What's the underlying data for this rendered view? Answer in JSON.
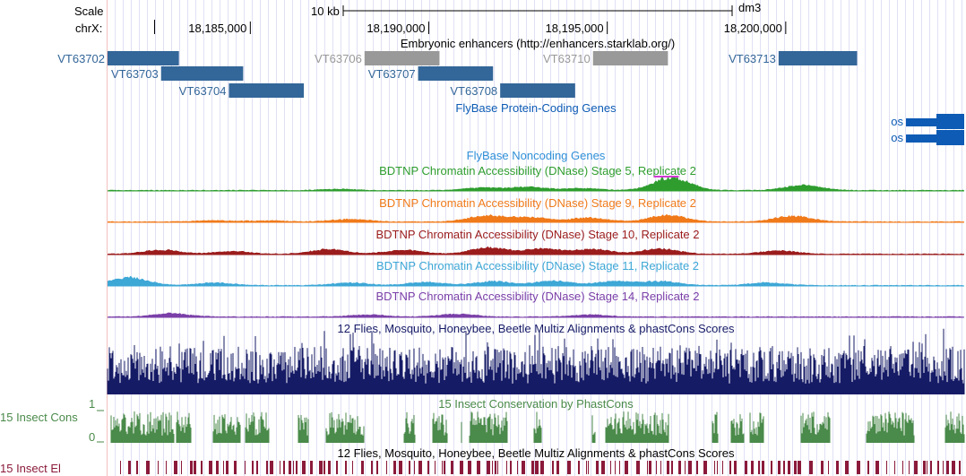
{
  "header": {
    "scale_label": "Scale",
    "scale_bar_label": "10 kb",
    "assembly": "dm3",
    "chrom_label": "chrX:",
    "ticks": [
      {
        "pos": 18185000,
        "label": "18,185,000"
      },
      {
        "pos": 18190000,
        "label": "18,190,000"
      },
      {
        "pos": 18195000,
        "label": "18,195,000"
      },
      {
        "pos": 18200000,
        "label": "18,200,000"
      }
    ]
  },
  "view": {
    "start": 18181000,
    "end": 18205000
  },
  "colors": {
    "enhancer_active": "#336699",
    "enhancer_inactive": "#999999",
    "gene": "#0d5bb5",
    "stage5": "#2e9d2e",
    "stage9": "#f07a1a",
    "stage10": "#9b1c1c",
    "stage11": "#3da7d6",
    "stage14": "#7a3fa8",
    "multiz": "#161b66",
    "phastcons": "#4a8a4a",
    "elements": "#8b1a3a",
    "grid": "#ccccee"
  },
  "tracks": {
    "enhancers": {
      "title": "Embryonic enhancers (http://enhancers.starklab.org/)",
      "items": [
        {
          "name": "VT63702",
          "start": 18181000,
          "end": 18183000,
          "active": true,
          "row": 0
        },
        {
          "name": "VT63703",
          "start": 18182500,
          "end": 18184800,
          "active": true,
          "row": 1
        },
        {
          "name": "VT63704",
          "start": 18184400,
          "end": 18186500,
          "active": true,
          "row": 2
        },
        {
          "name": "VT63706",
          "start": 18188200,
          "end": 18190300,
          "active": false,
          "row": 0
        },
        {
          "name": "VT63707",
          "start": 18189700,
          "end": 18191800,
          "active": true,
          "row": 1
        },
        {
          "name": "VT63708",
          "start": 18192000,
          "end": 18194100,
          "active": true,
          "row": 2
        },
        {
          "name": "VT63710",
          "start": 18194600,
          "end": 18196700,
          "active": false,
          "row": 0
        },
        {
          "name": "VT63713",
          "start": 18199800,
          "end": 18202000,
          "active": true,
          "row": 0
        }
      ]
    },
    "protein_coding": {
      "title": "FlyBase Protein-Coding Genes",
      "genes": [
        {
          "name": "os",
          "row": 0
        },
        {
          "name": "os",
          "row": 1
        }
      ]
    },
    "noncoding": {
      "title": "FlyBase Noncoding Genes"
    },
    "dnase": [
      {
        "title": "BDTNP Chromatin Accessibility (DNase) Stage 5, Replicate 2",
        "color_key": "stage5",
        "peaks": [
          [
            18187500,
            0.1
          ],
          [
            18191500,
            0.2
          ],
          [
            18192800,
            0.25
          ],
          [
            18194300,
            0.15
          ],
          [
            18196800,
            1.0
          ],
          [
            18200500,
            0.4
          ]
        ]
      },
      {
        "title": "BDTNP Chromatin Accessibility (DNase) Stage 9, Replicate 2",
        "color_key": "stage9",
        "peaks": [
          [
            18184000,
            0.1
          ],
          [
            18185500,
            0.08
          ],
          [
            18187800,
            0.2
          ],
          [
            18191600,
            0.45
          ],
          [
            18192800,
            0.35
          ],
          [
            18194500,
            0.3
          ],
          [
            18196700,
            0.5
          ],
          [
            18200200,
            0.45
          ]
        ]
      },
      {
        "title": "BDTNP Chromatin Accessibility (DNase) Stage 10, Replicate 2",
        "color_key": "stage10",
        "peaks": [
          [
            18182500,
            0.3
          ],
          [
            18184500,
            0.2
          ],
          [
            18187200,
            0.35
          ],
          [
            18189300,
            0.3
          ],
          [
            18191700,
            0.5
          ],
          [
            18193200,
            0.4
          ],
          [
            18194600,
            0.35
          ],
          [
            18196500,
            0.4
          ],
          [
            18199800,
            0.25
          ]
        ]
      },
      {
        "title": "BDTNP Chromatin Accessibility (DNase) Stage 11, Replicate 2",
        "color_key": "stage11",
        "peaks": [
          [
            18181600,
            0.6
          ],
          [
            18184000,
            0.2
          ],
          [
            18187800,
            0.2
          ],
          [
            18189900,
            0.25
          ],
          [
            18191800,
            0.3
          ],
          [
            18193500,
            0.35
          ],
          [
            18195200,
            0.3
          ],
          [
            18196500,
            0.3
          ],
          [
            18199500,
            0.2
          ]
        ]
      },
      {
        "title": "BDTNP Chromatin Accessibility (DNase) Stage 14, Replicate 2",
        "color_key": "stage14",
        "peaks": [
          [
            18182800,
            0.25
          ],
          [
            18188300,
            0.15
          ],
          [
            18190800,
            0.2
          ],
          [
            18194500,
            0.15
          ]
        ]
      }
    ],
    "multiz": {
      "title": "12 Flies, Mosquito, Honeybee, Beetle Multiz Alignments & phastCons Scores"
    },
    "phastcons": {
      "title": "15 Insect Conservation by PhastCons",
      "side_label": "15 Insect Cons",
      "ymax_label": "1",
      "ymin_label": "0"
    },
    "elements": {
      "title": "12 Flies, Mosquito, Honeybee, Beetle Multiz Alignments & phastCons Scores",
      "side_label": "15 Insect El"
    }
  }
}
